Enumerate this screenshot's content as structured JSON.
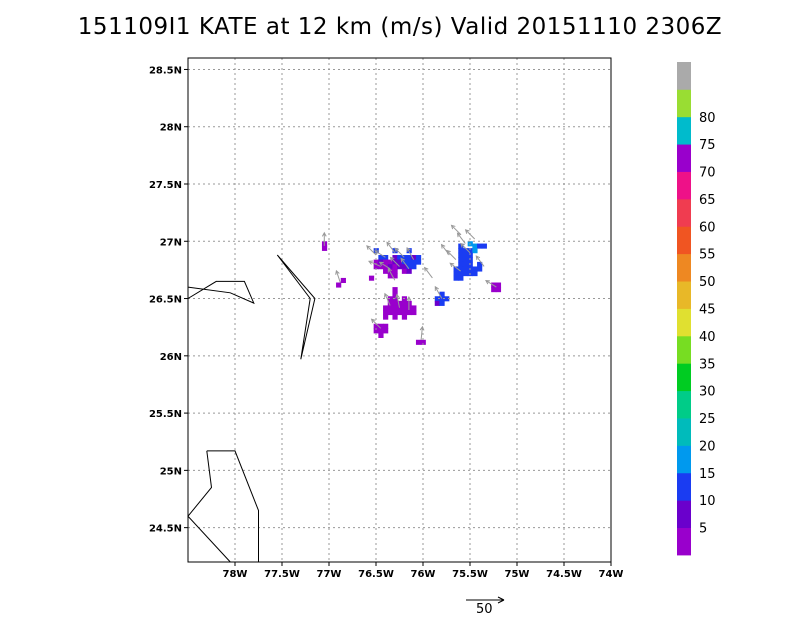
{
  "title": "151109I1 KATE at 12 km (m/s) Valid 20151110 2306Z",
  "map": {
    "lon_range": [
      -78.5,
      -74.0
    ],
    "lat_range": [
      24.2,
      28.6
    ],
    "lon_ticks": [
      {
        "value": -78.0,
        "label": "78W"
      },
      {
        "value": -77.5,
        "label": "77.5W"
      },
      {
        "value": -77.0,
        "label": "77W"
      },
      {
        "value": -76.5,
        "label": "76.5W"
      },
      {
        "value": -76.0,
        "label": "76W"
      },
      {
        "value": -75.5,
        "label": "75.5W"
      },
      {
        "value": -75.0,
        "label": "75W"
      },
      {
        "value": -74.5,
        "label": "74.5W"
      },
      {
        "value": -74.0,
        "label": "74W"
      }
    ],
    "lat_ticks": [
      {
        "value": 24.5,
        "label": "24.5N"
      },
      {
        "value": 25.0,
        "label": "25N"
      },
      {
        "value": 25.5,
        "label": "25.5N"
      },
      {
        "value": 26.0,
        "label": "26N"
      },
      {
        "value": 26.5,
        "label": "26.5N"
      },
      {
        "value": 27.0,
        "label": "27N"
      },
      {
        "value": 27.5,
        "label": "27.5N"
      },
      {
        "value": 28.0,
        "label": "28N"
      },
      {
        "value": 28.5,
        "label": "28.5N"
      }
    ],
    "grid": "dotted",
    "coastlines": [
      [
        [
          -78.5,
          26.5
        ],
        [
          -78.2,
          26.65
        ],
        [
          -77.9,
          26.65
        ],
        [
          -77.8,
          26.46
        ],
        [
          -78.05,
          26.55
        ],
        [
          -78.5,
          26.6
        ]
      ],
      [
        [
          -77.55,
          26.88
        ],
        [
          -77.15,
          26.5
        ],
        [
          -77.3,
          25.97
        ],
        [
          -77.2,
          26.5
        ],
        [
          -77.55,
          26.88
        ]
      ],
      [
        [
          -78.3,
          25.17
        ],
        [
          -78.0,
          25.17
        ],
        [
          -77.75,
          24.65
        ],
        [
          -77.75,
          24.2
        ]
      ],
      [
        [
          -78.3,
          25.17
        ],
        [
          -78.25,
          24.85
        ],
        [
          -78.5,
          24.6
        ],
        [
          -78.05,
          24.2
        ]
      ]
    ]
  },
  "colorbar": {
    "levels": [
      {
        "label": "5",
        "color": "#9900cc"
      },
      {
        "label": "10",
        "color": "#6a00cc"
      },
      {
        "label": "15",
        "color": "#1a3cf2"
      },
      {
        "label": "20",
        "color": "#0099ee"
      },
      {
        "label": "25",
        "color": "#00bbbb"
      },
      {
        "label": "30",
        "color": "#00cc88"
      },
      {
        "label": "35",
        "color": "#00cc22"
      },
      {
        "label": "40",
        "color": "#77dd22"
      },
      {
        "label": "45",
        "color": "#e0e030"
      },
      {
        "label": "50",
        "color": "#e8b828"
      },
      {
        "label": "55",
        "color": "#ee8822"
      },
      {
        "label": "60",
        "color": "#f05522"
      },
      {
        "label": "65",
        "color": "#f03c50"
      },
      {
        "label": "70",
        "color": "#ee1188"
      },
      {
        "label": "75",
        "color": "#9900cc"
      },
      {
        "label": "80",
        "color": "#00bbcc"
      },
      {
        "label": "",
        "color": "#99dd33"
      },
      {
        "label": "",
        "color": "#aaaaaa"
      }
    ]
  },
  "reference_vector": {
    "label": "50"
  },
  "wind_cells": {
    "cell_size_deg": [
      0.05,
      0.04
    ],
    "cells": [
      [
        -77.05,
        26.98,
        "#9900cc"
      ],
      [
        -77.05,
        26.94,
        "#9900cc"
      ],
      [
        -76.85,
        26.66,
        "#9900cc"
      ],
      [
        -76.9,
        26.62,
        "#9900cc"
      ],
      [
        -76.55,
        26.68,
        "#9900cc"
      ],
      [
        -76.5,
        26.92,
        "#1a3cf2"
      ],
      [
        -76.3,
        26.92,
        "#1a3cf2"
      ],
      [
        -76.15,
        26.92,
        "#1a3cf2"
      ],
      [
        -76.45,
        26.86,
        "#1a3cf2"
      ],
      [
        -76.4,
        26.86,
        "#1a3cf2"
      ],
      [
        -76.3,
        26.86,
        "#6a00cc"
      ],
      [
        -76.25,
        26.86,
        "#1a3cf2"
      ],
      [
        -76.2,
        26.86,
        "#1a3cf2"
      ],
      [
        -76.15,
        26.86,
        "#1a3cf2"
      ],
      [
        -76.1,
        26.86,
        "#6a00cc"
      ],
      [
        -76.05,
        26.86,
        "#1a3cf2"
      ],
      [
        -76.5,
        26.82,
        "#9900cc"
      ],
      [
        -76.45,
        26.82,
        "#6a00cc"
      ],
      [
        -76.4,
        26.82,
        "#9900cc"
      ],
      [
        -76.35,
        26.82,
        "#9900cc"
      ],
      [
        -76.3,
        26.82,
        "#6a00cc"
      ],
      [
        -76.25,
        26.82,
        "#6a00cc"
      ],
      [
        -76.2,
        26.82,
        "#1a3cf2"
      ],
      [
        -76.15,
        26.82,
        "#1a3cf2"
      ],
      [
        -76.1,
        26.82,
        "#1a3cf2"
      ],
      [
        -76.05,
        26.82,
        "#1a3cf2"
      ],
      [
        -76.5,
        26.78,
        "#9900cc"
      ],
      [
        -76.45,
        26.78,
        "#9900cc"
      ],
      [
        -76.4,
        26.78,
        "#9900cc"
      ],
      [
        -76.35,
        26.78,
        "#6a00cc"
      ],
      [
        -76.3,
        26.78,
        "#9900cc"
      ],
      [
        -76.25,
        26.78,
        "#6a00cc"
      ],
      [
        -76.2,
        26.78,
        "#6a00cc"
      ],
      [
        -76.15,
        26.78,
        "#1a3cf2"
      ],
      [
        -76.1,
        26.78,
        "#1a3cf2"
      ],
      [
        -76.4,
        26.74,
        "#9900cc"
      ],
      [
        -76.35,
        26.74,
        "#9900cc"
      ],
      [
        -76.3,
        26.74,
        "#9900cc"
      ],
      [
        -76.2,
        26.74,
        "#9900cc"
      ],
      [
        -76.15,
        26.74,
        "#6a00cc"
      ],
      [
        -76.35,
        26.7,
        "#9900cc"
      ],
      [
        -76.3,
        26.7,
        "#9900cc"
      ],
      [
        -76.3,
        26.58,
        "#9900cc"
      ],
      [
        -76.3,
        26.54,
        "#9900cc"
      ],
      [
        -76.35,
        26.5,
        "#9900cc"
      ],
      [
        -76.3,
        26.5,
        "#9900cc"
      ],
      [
        -76.2,
        26.5,
        "#9900cc"
      ],
      [
        -76.35,
        26.46,
        "#9900cc"
      ],
      [
        -76.3,
        26.46,
        "#9900cc"
      ],
      [
        -76.25,
        26.46,
        "#9900cc"
      ],
      [
        -76.2,
        26.46,
        "#9900cc"
      ],
      [
        -76.15,
        26.46,
        "#9900cc"
      ],
      [
        -76.4,
        26.42,
        "#9900cc"
      ],
      [
        -76.35,
        26.42,
        "#9900cc"
      ],
      [
        -76.3,
        26.42,
        "#9900cc"
      ],
      [
        -76.25,
        26.42,
        "#9900cc"
      ],
      [
        -76.2,
        26.42,
        "#9900cc"
      ],
      [
        -76.15,
        26.42,
        "#9900cc"
      ],
      [
        -76.1,
        26.42,
        "#9900cc"
      ],
      [
        -76.4,
        26.38,
        "#9900cc"
      ],
      [
        -76.35,
        26.38,
        "#9900cc"
      ],
      [
        -76.3,
        26.38,
        "#9900cc"
      ],
      [
        -76.25,
        26.38,
        "#9900cc"
      ],
      [
        -76.2,
        26.38,
        "#9900cc"
      ],
      [
        -76.15,
        26.38,
        "#9900cc"
      ],
      [
        -76.1,
        26.38,
        "#9900cc"
      ],
      [
        -76.4,
        26.34,
        "#9900cc"
      ],
      [
        -76.3,
        26.34,
        "#9900cc"
      ],
      [
        -76.2,
        26.34,
        "#9900cc"
      ],
      [
        -76.5,
        26.26,
        "#9900cc"
      ],
      [
        -76.45,
        26.26,
        "#9900cc"
      ],
      [
        -76.4,
        26.26,
        "#9900cc"
      ],
      [
        -76.5,
        26.22,
        "#9900cc"
      ],
      [
        -76.45,
        26.22,
        "#9900cc"
      ],
      [
        -76.4,
        26.22,
        "#9900cc"
      ],
      [
        -76.45,
        26.18,
        "#9900cc"
      ],
      [
        -76.05,
        26.12,
        "#9900cc"
      ],
      [
        -76.0,
        26.12,
        "#9900cc"
      ],
      [
        -75.8,
        26.54,
        "#1a3cf2"
      ],
      [
        -75.85,
        26.5,
        "#1a3cf2"
      ],
      [
        -75.8,
        26.5,
        "#1a3cf2"
      ],
      [
        -75.75,
        26.5,
        "#1a3cf2"
      ],
      [
        -75.85,
        26.46,
        "#6a00cc"
      ],
      [
        -75.8,
        26.46,
        "#1a3cf2"
      ],
      [
        -75.6,
        26.96,
        "#1a3cf2"
      ],
      [
        -75.5,
        26.98,
        "#0099ee"
      ],
      [
        -75.45,
        26.96,
        "#0099ee"
      ],
      [
        -75.4,
        26.96,
        "#1a3cf2"
      ],
      [
        -75.35,
        26.96,
        "#1a3cf2"
      ],
      [
        -75.6,
        26.92,
        "#1a3cf2"
      ],
      [
        -75.55,
        26.92,
        "#1a3cf2"
      ],
      [
        -75.5,
        26.92,
        "#1a3cf2"
      ],
      [
        -75.45,
        26.92,
        "#0099ee"
      ],
      [
        -75.6,
        26.88,
        "#1a3cf2"
      ],
      [
        -75.55,
        26.88,
        "#1a3cf2"
      ],
      [
        -75.5,
        26.88,
        "#1a3cf2"
      ],
      [
        -75.6,
        26.84,
        "#1a3cf2"
      ],
      [
        -75.55,
        26.84,
        "#1a3cf2"
      ],
      [
        -75.5,
        26.84,
        "#1a3cf2"
      ],
      [
        -75.6,
        26.8,
        "#1a3cf2"
      ],
      [
        -75.55,
        26.8,
        "#1a3cf2"
      ],
      [
        -75.5,
        26.8,
        "#1a3cf2"
      ],
      [
        -75.4,
        26.8,
        "#1a3cf2"
      ],
      [
        -75.65,
        26.76,
        "#1a3cf2"
      ],
      [
        -75.6,
        26.76,
        "#1a3cf2"
      ],
      [
        -75.55,
        26.76,
        "#1a3cf2"
      ],
      [
        -75.5,
        26.76,
        "#1a3cf2"
      ],
      [
        -75.45,
        26.76,
        "#1a3cf2"
      ],
      [
        -75.4,
        26.76,
        "#1a3cf2"
      ],
      [
        -75.65,
        26.72,
        "#1a3cf2"
      ],
      [
        -75.6,
        26.72,
        "#1a3cf2"
      ],
      [
        -75.55,
        26.72,
        "#1a3cf2"
      ],
      [
        -75.5,
        26.72,
        "#1a3cf2"
      ],
      [
        -75.45,
        26.72,
        "#1a3cf2"
      ],
      [
        -75.65,
        26.68,
        "#1a3cf2"
      ],
      [
        -75.6,
        26.68,
        "#1a3cf2"
      ],
      [
        -75.25,
        26.62,
        "#9900cc"
      ],
      [
        -75.2,
        26.62,
        "#9900cc"
      ],
      [
        -75.25,
        26.58,
        "#9900cc"
      ],
      [
        -75.2,
        26.58,
        "#9900cc"
      ]
    ]
  },
  "wind_vectors": [
    [
      -76.5,
      26.88,
      -0.7,
      0.7
    ],
    [
      -76.4,
      26.86,
      -0.8,
      0.5
    ],
    [
      -76.3,
      26.9,
      -0.6,
      0.8
    ],
    [
      -76.2,
      26.86,
      -0.7,
      0.7
    ],
    [
      -76.1,
      26.84,
      -0.5,
      0.9
    ],
    [
      -76.45,
      26.78,
      -0.9,
      0.4
    ],
    [
      -76.35,
      26.76,
      -0.8,
      0.5
    ],
    [
      -76.25,
      26.78,
      -0.7,
      0.7
    ],
    [
      -76.15,
      26.76,
      -0.6,
      0.8
    ],
    [
      -76.3,
      26.66,
      -0.5,
      0.9
    ],
    [
      -76.35,
      26.44,
      -0.4,
      0.9
    ],
    [
      -76.25,
      26.42,
      -0.2,
      1.0
    ],
    [
      -76.15,
      26.4,
      0.0,
      1.0
    ],
    [
      -76.45,
      26.24,
      -0.7,
      0.7
    ],
    [
      -76.02,
      26.14,
      0.1,
      1.0
    ],
    [
      -75.8,
      26.5,
      -0.5,
      0.9
    ],
    [
      -75.9,
      26.68,
      -0.6,
      0.8
    ],
    [
      -75.65,
      26.84,
      -0.7,
      0.7
    ],
    [
      -75.55,
      26.98,
      -0.6,
      0.8
    ],
    [
      -75.5,
      26.9,
      -0.7,
      0.7
    ],
    [
      -75.6,
      26.74,
      -0.8,
      0.6
    ],
    [
      -75.45,
      27.02,
      -0.7,
      0.7
    ],
    [
      -75.6,
      27.06,
      -0.7,
      0.7
    ],
    [
      -75.35,
      26.78,
      -0.6,
      0.8
    ],
    [
      -75.22,
      26.6,
      -0.8,
      0.5
    ],
    [
      -77.05,
      26.96,
      0.0,
      1.0
    ],
    [
      -76.88,
      26.64,
      -0.3,
      0.9
    ],
    [
      -75.72,
      26.88,
      -0.6,
      0.8
    ]
  ]
}
